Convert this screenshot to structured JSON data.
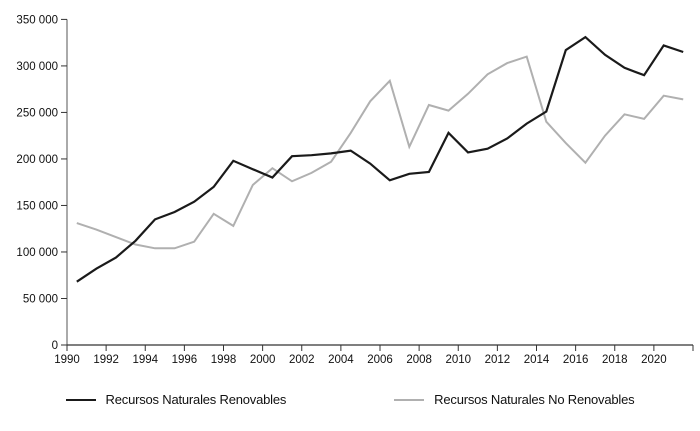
{
  "chart_data": {
    "type": "line",
    "title": "",
    "xlabel": "",
    "ylabel": "",
    "x": [
      1990,
      1991,
      1992,
      1993,
      1994,
      1995,
      1996,
      1997,
      1998,
      1999,
      2000,
      2001,
      2002,
      2003,
      2004,
      2005,
      2006,
      2007,
      2008,
      2009,
      2010,
      2011,
      2012,
      2013,
      2014,
      2015,
      2016,
      2017,
      2018,
      2019,
      2020,
      2021
    ],
    "ylim": [
      0,
      350000
    ],
    "grid": false,
    "legend_position": "bottom",
    "y_ticks": [
      0,
      50000,
      100000,
      150000,
      200000,
      250000,
      300000,
      350000
    ],
    "y_tick_labels": [
      "0",
      "50 000",
      "100 000",
      "150 000",
      "200 000",
      "250 000",
      "300 000",
      "350 000"
    ],
    "x_tick_labels": [
      "1990",
      "1992",
      "1994",
      "1996",
      "1998",
      "2000",
      "2002",
      "2004",
      "2006",
      "2008",
      "2010",
      "2012",
      "2014",
      "2016",
      "2018",
      "2020"
    ],
    "series": [
      {
        "name": "Recursos Naturales Renovables",
        "color": "#1a1a1a",
        "values": [
          68000,
          82000,
          94000,
          112000,
          135000,
          143000,
          154000,
          170000,
          198000,
          189000,
          180000,
          203000,
          204000,
          206000,
          209000,
          195000,
          177000,
          184000,
          186000,
          228000,
          207000,
          211000,
          222000,
          238000,
          251000,
          317000,
          331000,
          312000,
          298000,
          290000,
          322000,
          315000
        ]
      },
      {
        "name": "Recursos Naturales No Renovables",
        "color": "#b0b0b0",
        "values": [
          131000,
          124000,
          116000,
          108000,
          104000,
          104000,
          111000,
          141000,
          128000,
          172000,
          190000,
          176000,
          185000,
          197000,
          228000,
          262000,
          284000,
          213000,
          258000,
          252000,
          270000,
          291000,
          303000,
          310000,
          240000,
          217000,
          196000,
          225000,
          248000,
          243000,
          268000,
          264000
        ]
      }
    ]
  },
  "legend": {
    "items": [
      {
        "label": "Recursos Naturales Renovables",
        "color": "#1a1a1a"
      },
      {
        "label": "Recursos Naturales No Renovables",
        "color": "#b0b0b0"
      }
    ]
  }
}
